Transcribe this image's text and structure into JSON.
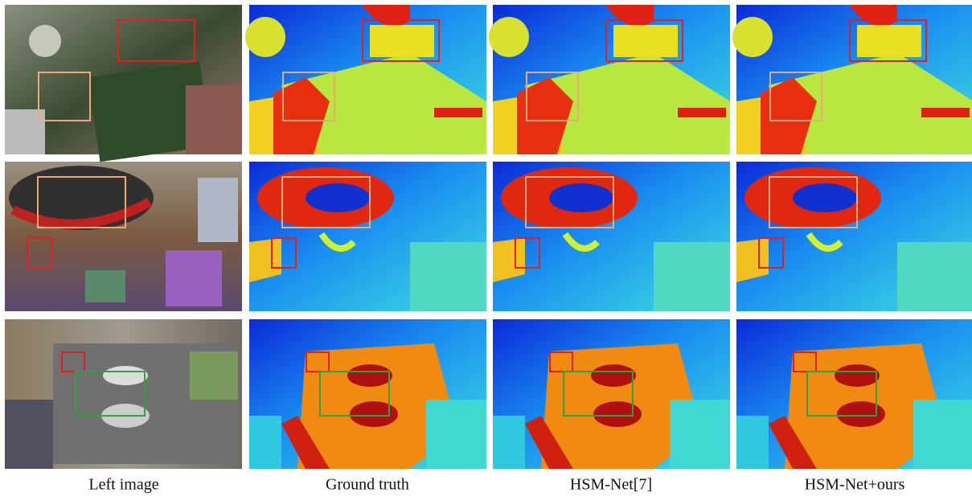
{
  "captions": [
    "Left image",
    "Ground truth",
    "HSM-Net[7]",
    "HSM-Net+ours"
  ]
}
